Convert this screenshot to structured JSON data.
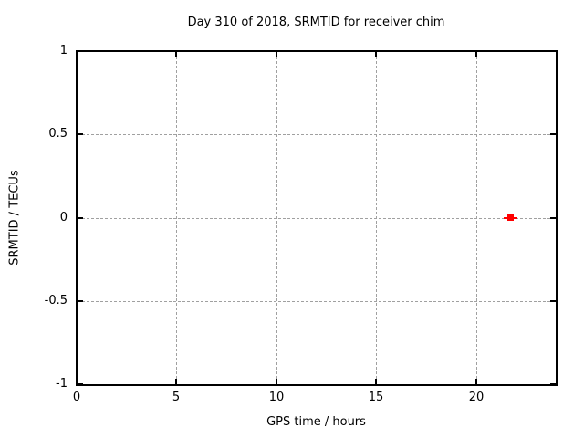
{
  "chart_data": {
    "type": "scatter",
    "title": "Day 310 of 2018, SRMTID for receiver chim",
    "xlabel": "GPS time / hours",
    "ylabel": "SRMTID / TECUs",
    "xlim": [
      0,
      24
    ],
    "ylim": [
      -1,
      1
    ],
    "xticks": [
      {
        "v": 0,
        "label": "0"
      },
      {
        "v": 5,
        "label": "5"
      },
      {
        "v": 10,
        "label": "10"
      },
      {
        "v": 15,
        "label": "15"
      },
      {
        "v": 20,
        "label": "20"
      }
    ],
    "yticks": [
      {
        "v": 1,
        "label": "1"
      },
      {
        "v": 0.5,
        "label": "0.5"
      },
      {
        "v": 0,
        "label": "0"
      },
      {
        "v": -0.5,
        "label": "-0.5"
      },
      {
        "v": -1,
        "label": "-1"
      }
    ],
    "grid": true,
    "legend_position": "none",
    "colors": {
      "background": "#ffffff",
      "axis": "#000000",
      "grid": "#a0a0a0",
      "text": "#000000"
    },
    "series": [
      {
        "name": "series-1",
        "color": "#ff0000",
        "marker": "filled-square",
        "style": "point-with-horizontal-bar",
        "points": [
          {
            "x": 21.74,
            "y": 0.0,
            "xerr": 0.35
          }
        ]
      }
    ]
  }
}
